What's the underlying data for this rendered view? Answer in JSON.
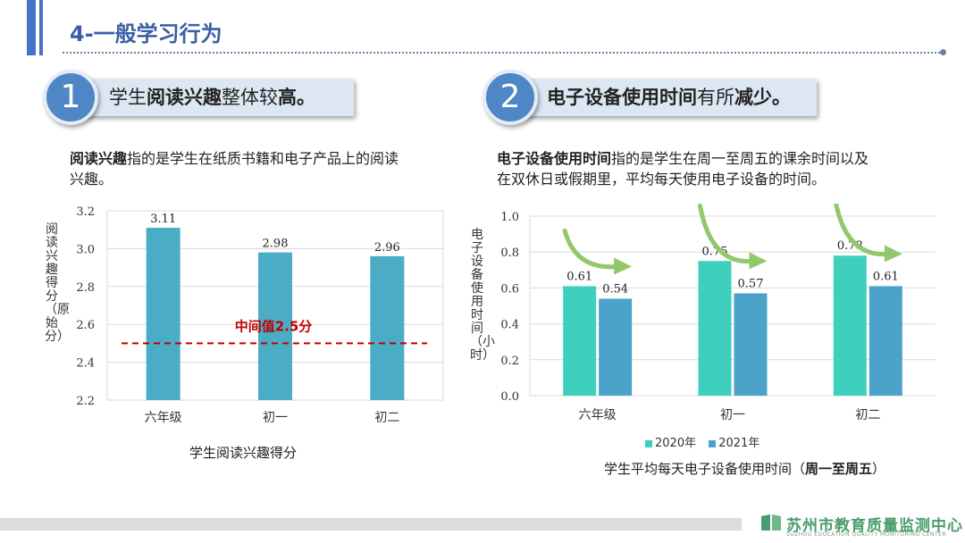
{
  "page": {
    "title": "4-一般学习行为"
  },
  "section1": {
    "number": "1",
    "heading_parts": [
      "学生",
      "阅读兴趣",
      "整体较",
      "高。"
    ],
    "desc_bold": "阅读兴趣",
    "desc_line1": "指的是学生在纸质书籍和电子产品上的阅读",
    "desc_line2": "兴趣。"
  },
  "section2": {
    "number": "2",
    "heading_parts": [
      "电子设备使用时间",
      "有所",
      "减少。"
    ],
    "desc_bold": "电子设备使用时间",
    "desc_line1": "指的是学生在周一至周五的课余时间以及",
    "desc_line2": "在双休日或假期里，平均每天使用电子设备的时间。"
  },
  "chart_data": [
    {
      "type": "bar",
      "categories": [
        "六年级",
        "初一",
        "初二"
      ],
      "values": [
        3.11,
        2.98,
        2.96
      ],
      "value_labels": [
        "3.11",
        "2.98",
        "2.96"
      ],
      "ylabel": "阅读兴趣得分（原始分）",
      "ylim": [
        2.2,
        3.2
      ],
      "yticks": [
        "2.2",
        "2.4",
        "2.6",
        "2.8",
        "3.0",
        "3.2"
      ],
      "caption": "学生阅读兴趣得分",
      "reference_line": {
        "value": 2.5,
        "label": "中间值2.5分",
        "color": "#c00000"
      },
      "bar_color": "#4bacc6",
      "grid": true
    },
    {
      "type": "bar",
      "categories": [
        "六年级",
        "初一",
        "初二"
      ],
      "series": [
        {
          "name": "2020年",
          "values": [
            0.61,
            0.75,
            0.78
          ],
          "labels": [
            "0.61",
            "0.75",
            "0.78"
          ],
          "color": "#3ecfbd"
        },
        {
          "name": "2021年",
          "values": [
            0.54,
            0.57,
            0.61
          ],
          "labels": [
            "0.54",
            "0.57",
            "0.61"
          ],
          "color": "#4ba3c9"
        }
      ],
      "ylabel": "电子设备使用时间（小时）",
      "ylim": [
        0.0,
        1.0
      ],
      "yticks": [
        "0.0",
        "0.2",
        "0.4",
        "0.6",
        "0.8",
        "1.0"
      ],
      "caption_prefix": "学生平均每天电子设备使用时间（",
      "caption_bold": "周一至周五",
      "caption_suffix": "）",
      "legend_position": "bottom",
      "trend_arrow_color": "#92c86a",
      "grid": true
    }
  ],
  "footer": {
    "org_name": "苏州市教育质量监测中心",
    "org_name_en": "SUZHOU EDUCATION QUALITY MONITORING CENTER",
    "accent_color": "#4a9c6b"
  }
}
